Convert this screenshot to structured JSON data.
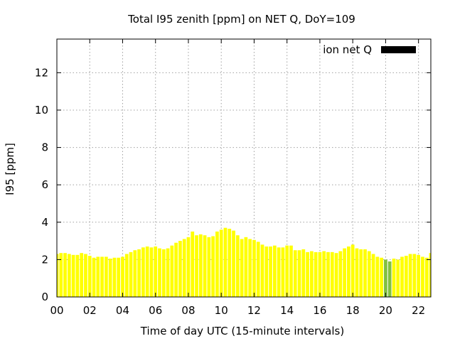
{
  "chart_data": {
    "type": "bar",
    "title": "Total I95 zenith [ppm] on NET Q, DoY=109",
    "xlabel": "Time of day UTC (15-minute intervals)",
    "ylabel": "I95 [ppm]",
    "x_ticks": [
      "00",
      "02",
      "04",
      "06",
      "08",
      "10",
      "12",
      "14",
      "16",
      "18",
      "20",
      "22"
    ],
    "y_ticks": [
      "0",
      "2",
      "4",
      "6",
      "8",
      "10",
      "12"
    ],
    "xlim": [
      0,
      22.75
    ],
    "ylim": [
      0,
      13.8
    ],
    "grid": true,
    "legend_position": "top-right",
    "series": [
      {
        "name": "ion net Q",
        "legend_color": "#000000",
        "color": "#ffff00",
        "highlight_color": "#80c040",
        "highlight_indices": [
          80,
          81
        ],
        "start_hour": 0,
        "step_hours": 0.25,
        "values": [
          2.3,
          2.35,
          2.35,
          2.3,
          2.25,
          2.25,
          2.35,
          2.3,
          2.2,
          2.1,
          2.15,
          2.15,
          2.15,
          2.05,
          2.1,
          2.1,
          2.15,
          2.3,
          2.4,
          2.5,
          2.55,
          2.65,
          2.7,
          2.65,
          2.7,
          2.6,
          2.55,
          2.6,
          2.75,
          2.9,
          3.0,
          3.1,
          3.2,
          3.5,
          3.3,
          3.35,
          3.3,
          3.2,
          3.25,
          3.5,
          3.6,
          3.7,
          3.65,
          3.55,
          3.3,
          3.1,
          3.2,
          3.1,
          3.05,
          2.95,
          2.8,
          2.7,
          2.7,
          2.75,
          2.65,
          2.65,
          2.75,
          2.75,
          2.5,
          2.5,
          2.55,
          2.4,
          2.45,
          2.4,
          2.4,
          2.45,
          2.4,
          2.4,
          2.35,
          2.45,
          2.6,
          2.7,
          2.8,
          2.6,
          2.55,
          2.55,
          2.45,
          2.3,
          2.15,
          2.1,
          2.0,
          1.9,
          2.05,
          2.0,
          2.15,
          2.2,
          2.3,
          2.3,
          2.25,
          2.15,
          2.1,
          2.35
        ]
      }
    ]
  }
}
